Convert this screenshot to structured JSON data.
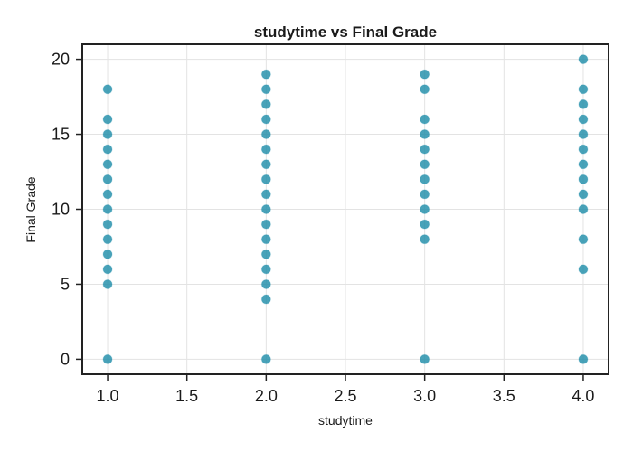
{
  "chart_data": {
    "type": "scatter",
    "title": "studytime vs Final Grade",
    "xlabel": "studytime",
    "ylabel": "Final Grade",
    "xlim": [
      0.84,
      4.16
    ],
    "ylim": [
      -1,
      21
    ],
    "xticks": [
      1.0,
      1.5,
      2.0,
      2.5,
      3.0,
      3.5,
      4.0
    ],
    "xtick_labels": [
      "1.0",
      "1.5",
      "2.0",
      "2.5",
      "3.0",
      "3.5",
      "4.0"
    ],
    "yticks": [
      0,
      5,
      10,
      15,
      20
    ],
    "ytick_labels": [
      "0",
      "5",
      "10",
      "15",
      "20"
    ],
    "grid": true,
    "legend": "none",
    "marker_color": "#1a8ba8",
    "points": [
      {
        "x": 1,
        "y": 0
      },
      {
        "x": 1,
        "y": 5
      },
      {
        "x": 1,
        "y": 6
      },
      {
        "x": 1,
        "y": 7
      },
      {
        "x": 1,
        "y": 8
      },
      {
        "x": 1,
        "y": 9
      },
      {
        "x": 1,
        "y": 10
      },
      {
        "x": 1,
        "y": 11
      },
      {
        "x": 1,
        "y": 12
      },
      {
        "x": 1,
        "y": 13
      },
      {
        "x": 1,
        "y": 14
      },
      {
        "x": 1,
        "y": 15
      },
      {
        "x": 1,
        "y": 16
      },
      {
        "x": 1,
        "y": 18
      },
      {
        "x": 2,
        "y": 0
      },
      {
        "x": 2,
        "y": 4
      },
      {
        "x": 2,
        "y": 5
      },
      {
        "x": 2,
        "y": 6
      },
      {
        "x": 2,
        "y": 7
      },
      {
        "x": 2,
        "y": 8
      },
      {
        "x": 2,
        "y": 9
      },
      {
        "x": 2,
        "y": 10
      },
      {
        "x": 2,
        "y": 11
      },
      {
        "x": 2,
        "y": 12
      },
      {
        "x": 2,
        "y": 13
      },
      {
        "x": 2,
        "y": 14
      },
      {
        "x": 2,
        "y": 15
      },
      {
        "x": 2,
        "y": 16
      },
      {
        "x": 2,
        "y": 17
      },
      {
        "x": 2,
        "y": 18
      },
      {
        "x": 2,
        "y": 19
      },
      {
        "x": 3,
        "y": 0
      },
      {
        "x": 3,
        "y": 8
      },
      {
        "x": 3,
        "y": 9
      },
      {
        "x": 3,
        "y": 10
      },
      {
        "x": 3,
        "y": 11
      },
      {
        "x": 3,
        "y": 12
      },
      {
        "x": 3,
        "y": 13
      },
      {
        "x": 3,
        "y": 14
      },
      {
        "x": 3,
        "y": 15
      },
      {
        "x": 3,
        "y": 16
      },
      {
        "x": 3,
        "y": 18
      },
      {
        "x": 3,
        "y": 19
      },
      {
        "x": 4,
        "y": 0
      },
      {
        "x": 4,
        "y": 6
      },
      {
        "x": 4,
        "y": 8
      },
      {
        "x": 4,
        "y": 10
      },
      {
        "x": 4,
        "y": 11
      },
      {
        "x": 4,
        "y": 12
      },
      {
        "x": 4,
        "y": 13
      },
      {
        "x": 4,
        "y": 14
      },
      {
        "x": 4,
        "y": 15
      },
      {
        "x": 4,
        "y": 16
      },
      {
        "x": 4,
        "y": 17
      },
      {
        "x": 4,
        "y": 18
      },
      {
        "x": 4,
        "y": 20
      }
    ]
  }
}
